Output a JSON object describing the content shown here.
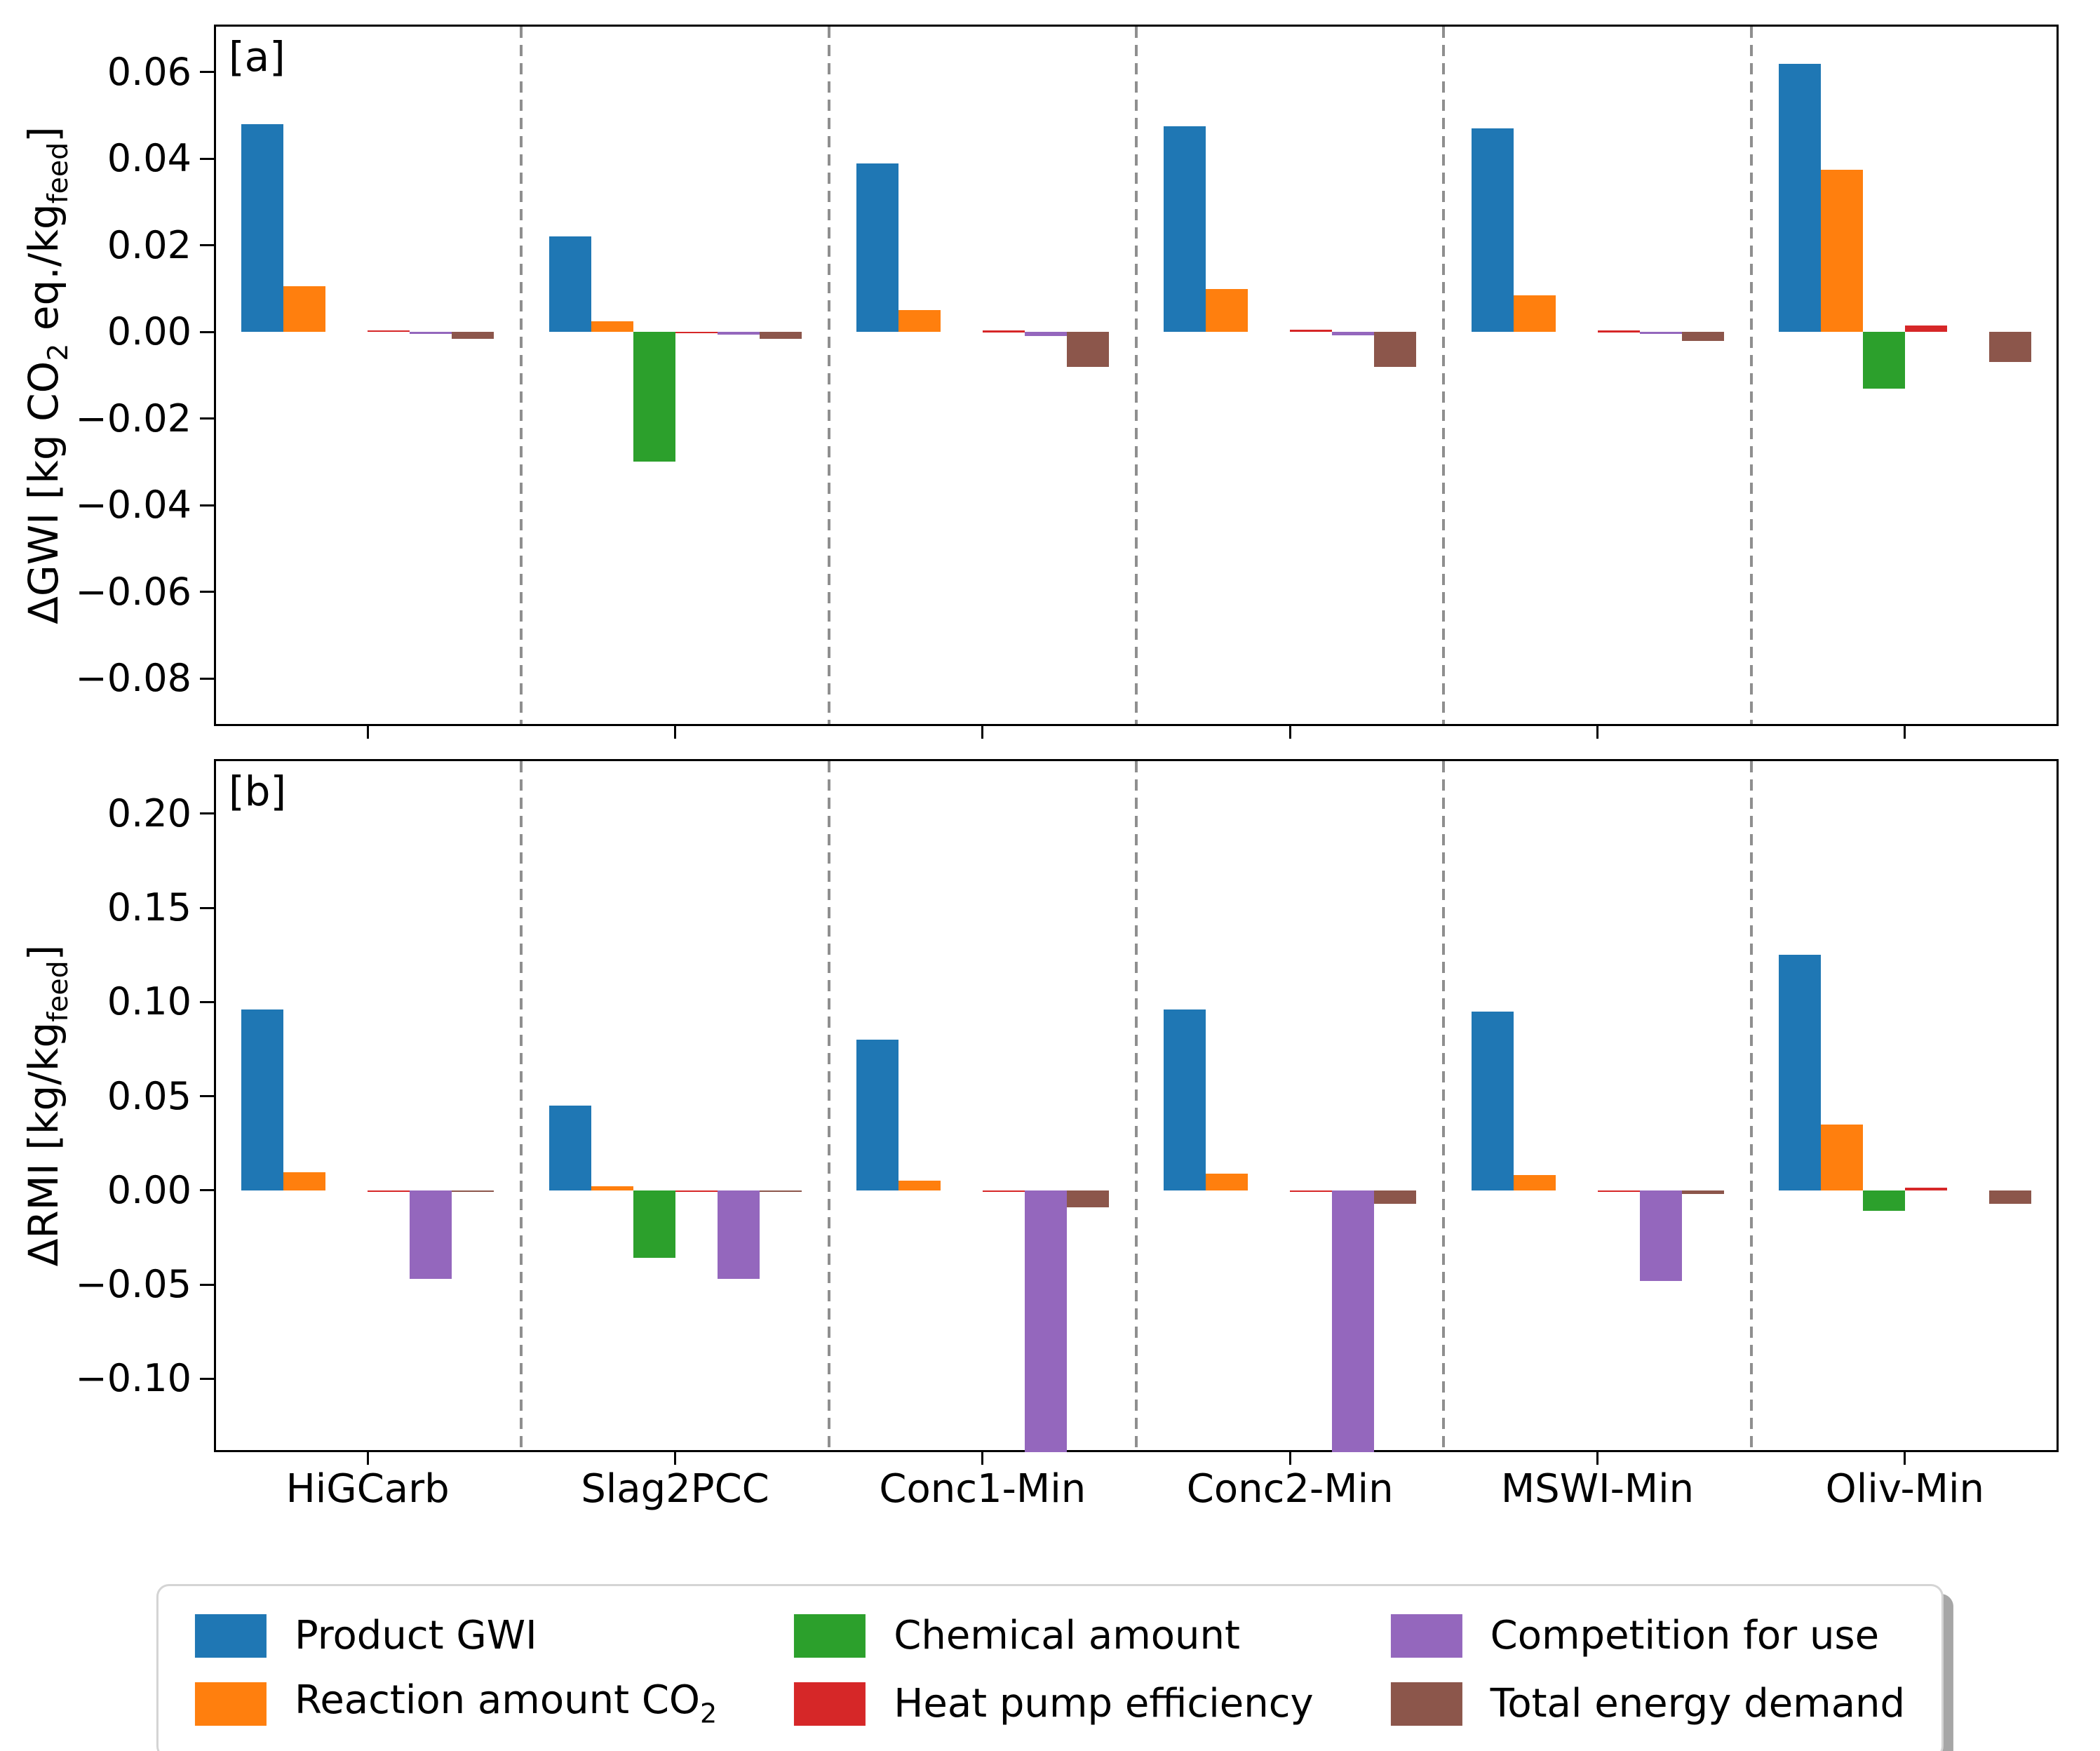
{
  "figure": {
    "background": "#ffffff"
  },
  "colors": {
    "product_gwi": "#1f77b4",
    "reaction_amount_co2": "#ff7f0e",
    "chemical_amount": "#2ca02c",
    "heat_pump_efficiency": "#d62728",
    "competition_for_use": "#9467bd",
    "total_energy_demand": "#8c564b",
    "separator": "#8f8f8f",
    "axis": "#000000",
    "legend_border": "#d4d4d4",
    "legend_shadow": "#a6a6a6"
  },
  "chart_data": [
    {
      "type": "bar",
      "panel_label": "[a]",
      "ylabel": "ΔGWI [kg CO₂ eq./kg_feed]",
      "ylabel_parts": [
        {
          "t": "ΔGWI [kg CO"
        },
        {
          "t": "2",
          "sub": true
        },
        {
          "t": " eq./kg"
        },
        {
          "t": "feed",
          "sub": true
        },
        {
          "t": "]"
        }
      ],
      "categories": [
        "HiGCarb",
        "Slag2PCC",
        "Conc1-Min",
        "Conc2-Min",
        "MSWI-Min",
        "Oliv-Min"
      ],
      "series": [
        {
          "name": "Product GWI",
          "color": "#1f77b4",
          "values": [
            0.048,
            0.022,
            0.039,
            0.0475,
            0.047,
            0.062
          ]
        },
        {
          "name": "Reaction amount CO₂",
          "color": "#ff7f0e",
          "values": [
            0.0105,
            0.0025,
            0.005,
            0.01,
            0.0085,
            0.0375
          ]
        },
        {
          "name": "Chemical amount",
          "color": "#2ca02c",
          "values": [
            0,
            -0.03,
            0,
            0,
            0,
            -0.013
          ]
        },
        {
          "name": "Heat pump efficiency",
          "color": "#d62728",
          "values": [
            0.0004,
            0.0001,
            0.0003,
            0.0006,
            0.0003,
            0.0015
          ]
        },
        {
          "name": "Competition for use",
          "color": "#9467bd",
          "values": [
            -0.0005,
            -0.0006,
            -0.001,
            -0.0007,
            -0.0005,
            0
          ]
        },
        {
          "name": "Total energy demand",
          "color": "#8c564b",
          "values": [
            -0.0015,
            -0.0015,
            -0.008,
            -0.008,
            -0.002,
            -0.007
          ]
        }
      ],
      "yticks": [
        {
          "label": "0.06",
          "value": 0.06
        },
        {
          "label": "0.04",
          "value": 0.04
        },
        {
          "label": "0.02",
          "value": 0.02
        },
        {
          "label": "0.00",
          "value": 0.0
        },
        {
          "label": "−0.02",
          "value": -0.02
        },
        {
          "label": "−0.04",
          "value": -0.04
        },
        {
          "label": "−0.06",
          "value": -0.06
        },
        {
          "label": "−0.08",
          "value": -0.08
        }
      ],
      "ylim": [
        -0.091,
        0.071
      ],
      "grid": false,
      "show_x_labels": false,
      "group_separators": true
    },
    {
      "type": "bar",
      "panel_label": "[b]",
      "ylabel": "ΔRMI [kg/kg_feed]",
      "ylabel_parts": [
        {
          "t": "ΔRMI [kg/kg"
        },
        {
          "t": "feed",
          "sub": true
        },
        {
          "t": "]"
        }
      ],
      "categories": [
        "HiGCarb",
        "Slag2PCC",
        "Conc1-Min",
        "Conc2-Min",
        "MSWI-Min",
        "Oliv-Min"
      ],
      "series": [
        {
          "name": "Product GWI",
          "color": "#1f77b4",
          "values": [
            0.096,
            0.045,
            0.08,
            0.096,
            0.095,
            0.125
          ]
        },
        {
          "name": "Reaction amount CO₂",
          "color": "#ff7f0e",
          "values": [
            0.0095,
            0.002,
            0.005,
            0.009,
            0.008,
            0.035
          ]
        },
        {
          "name": "Chemical amount",
          "color": "#2ca02c",
          "values": [
            0,
            -0.036,
            0,
            0,
            0,
            -0.011
          ]
        },
        {
          "name": "Heat pump efficiency",
          "color": "#d62728",
          "values": [
            -0.0005,
            -0.0005,
            -0.0005,
            -0.0005,
            -0.0005,
            0.0015
          ]
        },
        {
          "name": "Competition for use",
          "color": "#9467bd",
          "values": [
            -0.047,
            -0.047,
            -0.139,
            -0.139,
            -0.048,
            0
          ]
        },
        {
          "name": "Total energy demand",
          "color": "#8c564b",
          "values": [
            -0.001,
            -0.001,
            -0.009,
            -0.007,
            -0.002,
            -0.007
          ]
        }
      ],
      "clipped_bars": [
        {
          "series": "Competition for use",
          "category": "Conc1-Min"
        },
        {
          "series": "Competition for use",
          "category": "Conc2-Min"
        }
      ],
      "yticks": [
        {
          "label": "0.20",
          "value": 0.2
        },
        {
          "label": "0.15",
          "value": 0.15
        },
        {
          "label": "0.10",
          "value": 0.1
        },
        {
          "label": "0.05",
          "value": 0.05
        },
        {
          "label": "0.00",
          "value": 0.0
        },
        {
          "label": "−0.05",
          "value": -0.05
        },
        {
          "label": "−0.10",
          "value": -0.1
        }
      ],
      "ylim": [
        -0.139,
        0.229
      ],
      "grid": false,
      "show_x_labels": true,
      "group_separators": true
    }
  ],
  "legend": {
    "position": "bottom-center",
    "columns": 3,
    "items": [
      {
        "label": "Product GWI",
        "parts": [
          {
            "t": "Product GWI"
          }
        ],
        "color": "#1f77b4"
      },
      {
        "label": "Reaction amount CO₂",
        "parts": [
          {
            "t": "Reaction amount CO"
          },
          {
            "t": "2",
            "sub": true
          }
        ],
        "color": "#ff7f0e"
      },
      {
        "label": "Chemical amount",
        "parts": [
          {
            "t": "Chemical amount"
          }
        ],
        "color": "#2ca02c"
      },
      {
        "label": "Heat pump efficiency",
        "parts": [
          {
            "t": "Heat pump efficiency"
          }
        ],
        "color": "#d62728"
      },
      {
        "label": "Competition for use",
        "parts": [
          {
            "t": "Competition for use"
          }
        ],
        "color": "#9467bd"
      },
      {
        "label": "Total energy demand",
        "parts": [
          {
            "t": "Total energy demand"
          }
        ],
        "color": "#8c564b"
      }
    ]
  }
}
